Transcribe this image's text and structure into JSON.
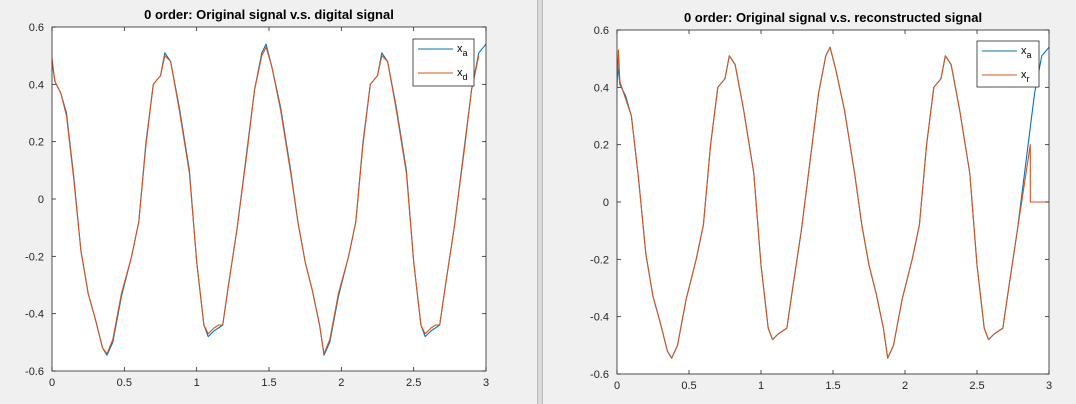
{
  "chart_data": [
    {
      "type": "line",
      "title": "0 order: Original signal v.s. digital signal",
      "xlim": [
        0,
        3
      ],
      "ylim": [
        -0.6,
        0.6
      ],
      "xticks": [
        "0",
        "0.5",
        "1",
        "1.5",
        "2",
        "2.5",
        "3"
      ],
      "yticks": [
        "0.6",
        "0.4",
        "0.2",
        "0",
        "-0.2",
        "-0.4",
        "-0.6"
      ],
      "grid": false,
      "legend_position": "top-right",
      "series": [
        {
          "name": "x",
          "name_subscript": "a",
          "color": "#0072bd",
          "x": [
            0,
            0.02,
            0.06,
            0.1,
            0.15,
            0.2,
            0.25,
            0.3,
            0.35,
            0.38,
            0.42,
            0.48,
            0.55,
            0.6,
            0.65,
            0.7,
            0.75,
            0.78,
            0.82,
            0.88,
            0.95,
            1.0,
            1.05,
            1.08,
            1.12,
            1.15,
            1.18,
            1.22,
            1.28,
            1.35,
            1.4,
            1.45,
            1.48,
            1.52,
            1.58,
            1.65,
            1.7,
            1.75,
            1.8,
            1.85,
            1.88,
            1.92,
            1.98,
            2.05,
            2.1,
            2.15,
            2.2,
            2.25,
            2.28,
            2.32,
            2.38,
            2.45,
            2.5,
            2.55,
            2.58,
            2.62,
            2.65,
            2.68,
            2.72,
            2.78,
            2.85,
            2.9,
            2.95,
            3.0
          ],
          "y": [
            0.48,
            0.41,
            0.37,
            0.3,
            0.08,
            -0.18,
            -0.33,
            -0.42,
            -0.52,
            -0.545,
            -0.5,
            -0.34,
            -0.2,
            -0.08,
            0.2,
            0.4,
            0.43,
            0.51,
            0.48,
            0.32,
            0.1,
            -0.22,
            -0.44,
            -0.48,
            -0.46,
            -0.45,
            -0.44,
            -0.3,
            -0.1,
            0.18,
            0.38,
            0.51,
            0.54,
            0.46,
            0.32,
            0.1,
            -0.08,
            -0.22,
            -0.32,
            -0.44,
            -0.545,
            -0.5,
            -0.34,
            -0.2,
            -0.08,
            0.2,
            0.4,
            0.43,
            0.51,
            0.48,
            0.32,
            0.1,
            -0.22,
            -0.44,
            -0.48,
            -0.46,
            -0.45,
            -0.44,
            -0.3,
            -0.1,
            0.18,
            0.38,
            0.51,
            0.54
          ]
        },
        {
          "name": "x",
          "name_subscript": "d",
          "color": "#d95319",
          "x": [
            0,
            0.02,
            0.06,
            0.1,
            0.15,
            0.2,
            0.25,
            0.3,
            0.35,
            0.38,
            0.42,
            0.48,
            0.55,
            0.6,
            0.65,
            0.7,
            0.75,
            0.78,
            0.82,
            0.88,
            0.95,
            1.0,
            1.05,
            1.08,
            1.12,
            1.15,
            1.18,
            1.22,
            1.28,
            1.35,
            1.4,
            1.45,
            1.48,
            1.52,
            1.58,
            1.65,
            1.7,
            1.75,
            1.8,
            1.85,
            1.88,
            1.92,
            1.98,
            2.05,
            2.1,
            2.15,
            2.2,
            2.25,
            2.28,
            2.32,
            2.38,
            2.45,
            2.5,
            2.55,
            2.58,
            2.62,
            2.65,
            2.68,
            2.72,
            2.78,
            2.85,
            2.9,
            2.95
          ],
          "y": [
            0.49,
            0.41,
            0.37,
            0.29,
            0.07,
            -0.18,
            -0.33,
            -0.42,
            -0.52,
            -0.54,
            -0.49,
            -0.33,
            -0.2,
            -0.08,
            0.19,
            0.4,
            0.43,
            0.5,
            0.48,
            0.31,
            0.09,
            -0.22,
            -0.44,
            -0.47,
            -0.45,
            -0.44,
            -0.44,
            -0.3,
            -0.1,
            0.17,
            0.38,
            0.5,
            0.53,
            0.46,
            0.31,
            0.09,
            -0.08,
            -0.22,
            -0.32,
            -0.44,
            -0.54,
            -0.49,
            -0.33,
            -0.2,
            -0.08,
            0.19,
            0.4,
            0.43,
            0.5,
            0.48,
            0.31,
            0.09,
            -0.22,
            -0.44,
            -0.47,
            -0.45,
            -0.44,
            -0.44,
            -0.3,
            -0.1,
            0.17,
            0.38,
            0.5
          ]
        }
      ]
    },
    {
      "type": "line",
      "title": "0 order: Original signal v.s. reconstructed signal",
      "xlim": [
        0,
        3
      ],
      "ylim": [
        -0.6,
        0.6
      ],
      "xticks": [
        "0",
        "0.5",
        "1",
        "1.5",
        "2",
        "2.5",
        "3"
      ],
      "yticks": [
        "0.6",
        "0.4",
        "0.2",
        "0",
        "-0.2",
        "-0.4",
        "-0.6"
      ],
      "grid": false,
      "legend_position": "top-right",
      "series": [
        {
          "name": "x",
          "name_subscript": "a",
          "color": "#0072bd",
          "x": [
            0,
            0.02,
            0.06,
            0.1,
            0.15,
            0.2,
            0.25,
            0.3,
            0.35,
            0.38,
            0.42,
            0.48,
            0.55,
            0.6,
            0.65,
            0.7,
            0.75,
            0.78,
            0.82,
            0.88,
            0.95,
            1.0,
            1.05,
            1.08,
            1.12,
            1.15,
            1.18,
            1.22,
            1.28,
            1.35,
            1.4,
            1.45,
            1.48,
            1.52,
            1.58,
            1.65,
            1.7,
            1.75,
            1.8,
            1.85,
            1.88,
            1.92,
            1.98,
            2.05,
            2.1,
            2.15,
            2.2,
            2.25,
            2.28,
            2.32,
            2.38,
            2.45,
            2.5,
            2.55,
            2.58,
            2.62,
            2.65,
            2.68,
            2.72,
            2.78,
            2.85,
            2.9,
            2.95,
            3.0
          ],
          "y": [
            0.5,
            0.41,
            0.37,
            0.3,
            0.08,
            -0.18,
            -0.33,
            -0.42,
            -0.52,
            -0.545,
            -0.5,
            -0.34,
            -0.2,
            -0.08,
            0.2,
            0.4,
            0.43,
            0.51,
            0.48,
            0.32,
            0.1,
            -0.22,
            -0.44,
            -0.48,
            -0.46,
            -0.45,
            -0.44,
            -0.3,
            -0.1,
            0.18,
            0.38,
            0.51,
            0.54,
            0.46,
            0.32,
            0.1,
            -0.08,
            -0.22,
            -0.32,
            -0.44,
            -0.545,
            -0.5,
            -0.34,
            -0.2,
            -0.08,
            0.2,
            0.4,
            0.43,
            0.51,
            0.48,
            0.32,
            0.1,
            -0.22,
            -0.44,
            -0.48,
            -0.46,
            -0.45,
            -0.44,
            -0.3,
            -0.1,
            0.18,
            0.38,
            0.51,
            0.54
          ]
        },
        {
          "name": "x",
          "name_subscript": "r",
          "color": "#d95319",
          "x": [
            0,
            0.01,
            0.02,
            0.06,
            0.1,
            0.15,
            0.2,
            0.25,
            0.3,
            0.35,
            0.38,
            0.42,
            0.48,
            0.55,
            0.6,
            0.65,
            0.7,
            0.75,
            0.78,
            0.82,
            0.88,
            0.95,
            1.0,
            1.05,
            1.08,
            1.12,
            1.15,
            1.18,
            1.22,
            1.28,
            1.35,
            1.4,
            1.45,
            1.48,
            1.52,
            1.58,
            1.65,
            1.7,
            1.75,
            1.8,
            1.85,
            1.88,
            1.92,
            1.98,
            2.05,
            2.1,
            2.15,
            2.2,
            2.25,
            2.28,
            2.32,
            2.38,
            2.45,
            2.5,
            2.55,
            2.58,
            2.62,
            2.65,
            2.68,
            2.72,
            2.78,
            2.84,
            2.87,
            2.87,
            3.0
          ],
          "y": [
            0.4,
            0.53,
            0.42,
            0.36,
            0.3,
            0.08,
            -0.18,
            -0.33,
            -0.42,
            -0.52,
            -0.545,
            -0.5,
            -0.34,
            -0.2,
            -0.08,
            0.2,
            0.4,
            0.43,
            0.51,
            0.48,
            0.32,
            0.1,
            -0.22,
            -0.44,
            -0.48,
            -0.46,
            -0.45,
            -0.44,
            -0.3,
            -0.1,
            0.18,
            0.38,
            0.51,
            0.54,
            0.46,
            0.32,
            0.1,
            -0.08,
            -0.22,
            -0.32,
            -0.44,
            -0.545,
            -0.5,
            -0.34,
            -0.2,
            -0.08,
            0.2,
            0.4,
            0.43,
            0.51,
            0.48,
            0.32,
            0.1,
            -0.22,
            -0.44,
            -0.48,
            -0.46,
            -0.45,
            -0.44,
            -0.3,
            -0.1,
            0.1,
            0.2,
            0.0,
            0.0
          ]
        }
      ]
    }
  ]
}
